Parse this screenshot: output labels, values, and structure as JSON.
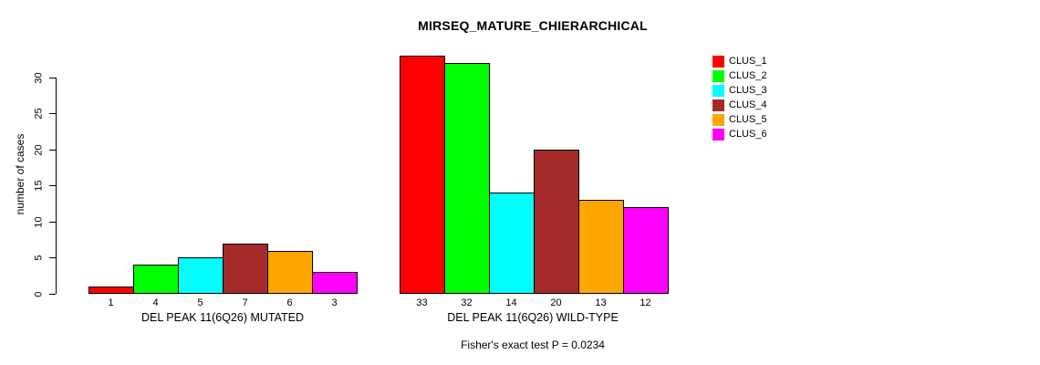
{
  "chart_data": {
    "type": "bar",
    "title": "MIRSEQ_MATURE_CHIERARCHICAL",
    "ylabel": "number of cases",
    "ylim": [
      0,
      33
    ],
    "yticks": [
      0,
      5,
      10,
      15,
      20,
      25,
      30
    ],
    "grid": false,
    "legend_position": "top-right",
    "series": [
      {
        "name": "CLUS_1",
        "color": "#FF0000"
      },
      {
        "name": "CLUS_2",
        "color": "#00FF00"
      },
      {
        "name": "CLUS_3",
        "color": "#00FFFF"
      },
      {
        "name": "CLUS_4",
        "color": "#A52A2A"
      },
      {
        "name": "CLUS_5",
        "color": "#FFA500"
      },
      {
        "name": "CLUS_6",
        "color": "#FF00FF"
      }
    ],
    "groups": [
      {
        "label": "DEL PEAK 11(6Q26) MUTATED",
        "values": [
          1,
          4,
          5,
          7,
          6,
          3
        ]
      },
      {
        "label": "DEL PEAK 11(6Q26) WILD-TYPE",
        "values": [
          33,
          32,
          14,
          20,
          13,
          12
        ]
      }
    ],
    "bar_value_labels_shown": true,
    "annotation": "Fisher's exact test P = 0.0234"
  }
}
